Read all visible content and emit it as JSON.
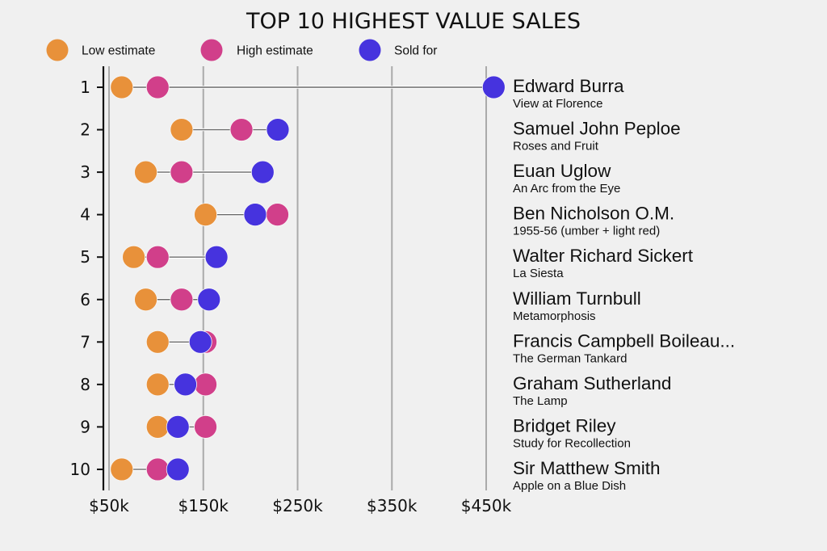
{
  "chart_data": {
    "type": "dot-range",
    "title": "TOP 10 HIGHEST VALUE SALES",
    "xlabel": "",
    "ylabel": "",
    "xlim": [
      50,
      450
    ],
    "x_unit": "thousand USD",
    "x_ticks": [
      50,
      150,
      250,
      350,
      450
    ],
    "x_tick_labels": [
      "$50k",
      "$150k",
      "$250k",
      "$350k",
      "$450k"
    ],
    "grid": "vertical",
    "legend_position": "top",
    "series": [
      {
        "name": "Low estimate",
        "key": "low",
        "color": "#E8913A"
      },
      {
        "name": "High estimate",
        "key": "high",
        "color": "#D13F8A"
      },
      {
        "name": "Sold for",
        "key": "sold",
        "color": "#4633DE"
      }
    ],
    "rows": [
      {
        "rank": "1",
        "artist": "Edward Burra",
        "work": "View at Florence",
        "low": 63.5,
        "high": 101.6,
        "sold": 458
      },
      {
        "rank": "2",
        "artist": "Samuel John Peploe",
        "work": "Roses and Fruit",
        "low": 127,
        "high": 190.5,
        "sold": 229
      },
      {
        "rank": "3",
        "artist": "Euan Uglow",
        "work": "An Arc from the Eye",
        "low": 89,
        "high": 127,
        "sold": 213
      },
      {
        "rank": "4",
        "artist": "Ben Nicholson O.M.",
        "work": "1955-56 (umber + light red)",
        "low": 152.4,
        "high": 228.6,
        "sold": 205
      },
      {
        "rank": "5",
        "artist": "Walter Richard Sickert",
        "work": "La Siesta",
        "low": 76.2,
        "high": 101.6,
        "sold": 164
      },
      {
        "rank": "6",
        "artist": "William Turnbull",
        "work": "Metamorphosis",
        "low": 89,
        "high": 127,
        "sold": 156
      },
      {
        "rank": "7",
        "artist": "Francis Campbell Boileau...",
        "work": "The German Tankard",
        "low": 101.6,
        "high": 152.4,
        "sold": 147
      },
      {
        "rank": "8",
        "artist": "Graham Sutherland",
        "work": "The Lamp",
        "low": 101.6,
        "high": 152.4,
        "sold": 131
      },
      {
        "rank": "9",
        "artist": "Bridget Riley",
        "work": "Study for Recollection",
        "low": 101.6,
        "high": 152.4,
        "sold": 123
      },
      {
        "rank": "10",
        "artist": "Sir Matthew Smith",
        "work": "Apple on a Blue Dish",
        "low": 63.5,
        "high": 101.6,
        "sold": 123
      }
    ]
  }
}
